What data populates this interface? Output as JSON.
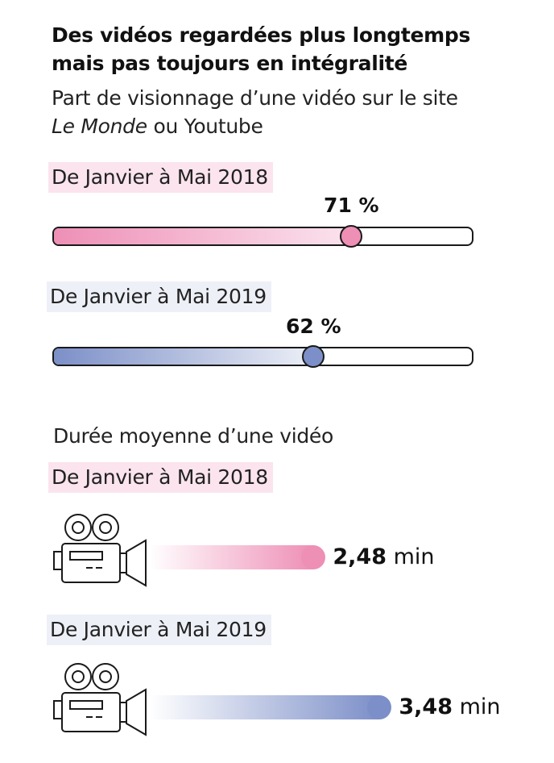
{
  "header": {
    "title_line1": "Des vidéos regardées plus longtemps",
    "title_line2": "mais pas toujours en intégralité",
    "subtitle_line1": "Part de visionnage d’une vidéo sur le site",
    "subtitle_italic": "Le Monde",
    "subtitle_rest": " ou Youtube"
  },
  "viewing_share": [
    {
      "period": "De Janvier à Mai 2018",
      "value": 71,
      "label": "71 %",
      "color": "#ee8fb6",
      "color_light": "#fbe4ee"
    },
    {
      "period": "De Janvier à Mai 2019",
      "value": 62,
      "label": "62 %",
      "color": "#7c8fc8",
      "color_light": "#edf0f7"
    }
  ],
  "duration_section": {
    "label": "Durée moyenne d’une vidéo",
    "unit": "min",
    "items": [
      {
        "period": "De Janvier à Mai 2018",
        "value": 2.48,
        "value_text": "2,48",
        "color": "#ee8fb6",
        "color_light": "#fbe4ee",
        "icon": "movie-camera-icon"
      },
      {
        "period": "De Janvier à Mai 2019",
        "value": 3.48,
        "value_text": "3,48",
        "color": "#7c8fc8",
        "color_light": "#edf0f7",
        "icon": "movie-camera-icon"
      }
    ]
  },
  "chart_data": [
    {
      "type": "bar",
      "title": "Part de visionnage d’une vidéo sur le site Le Monde ou Youtube",
      "categories": [
        "De Janvier à Mai 2018",
        "De Janvier à Mai 2019"
      ],
      "values": [
        71,
        62
      ],
      "ylabel": "%",
      "ylim": [
        0,
        100
      ]
    },
    {
      "type": "bar",
      "title": "Durée moyenne d’une vidéo",
      "categories": [
        "De Janvier à Mai 2018",
        "De Janvier à Mai 2019"
      ],
      "values": [
        2.48,
        3.48
      ],
      "ylabel": "min"
    }
  ]
}
